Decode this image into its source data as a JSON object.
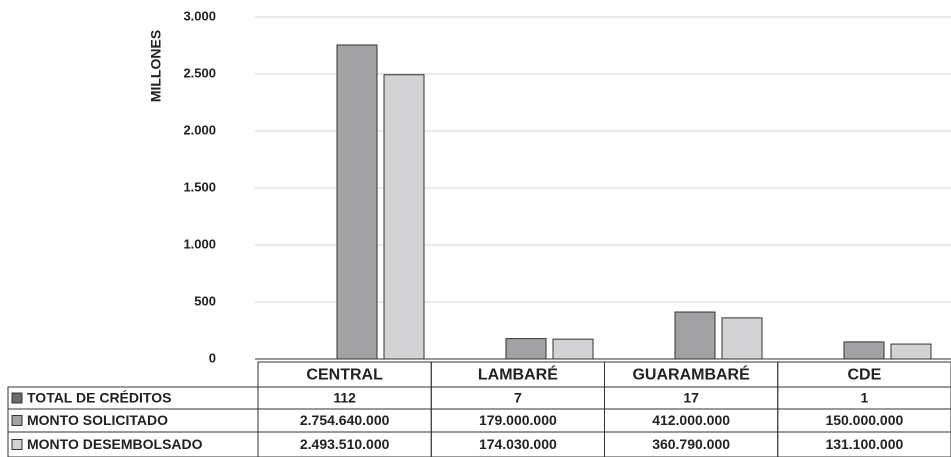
{
  "chart_data": {
    "type": "bar",
    "y_label": "MILLONES",
    "categories": [
      "CENTRAL",
      "LAMBARÉ",
      "GUARAMBARÉ",
      "CDE"
    ],
    "series": [
      {
        "name": "TOTAL DE CRÉDITOS",
        "color": "#6b6b6d",
        "bar": false,
        "values": [
          112,
          7,
          17,
          1
        ]
      },
      {
        "name": "MONTO SOLICITADO",
        "color": "#a2a2a5",
        "bar": true,
        "values": [
          2754.64,
          179,
          412,
          150
        ],
        "value_labels": [
          "2.754.640.000",
          "179.000.000",
          "412.000.000",
          "150.000.000"
        ]
      },
      {
        "name": "MONTO DESEMBOLSADO",
        "color": "#d3d3d5",
        "bar": true,
        "values": [
          2493.51,
          174.03,
          360.79,
          131.1
        ],
        "value_labels": [
          "2.493.510.000",
          "174.030.000",
          "360.790.000",
          "131.100.000"
        ]
      }
    ],
    "ylim": [
      0,
      3000
    ],
    "yticks": [
      0,
      500,
      {
        "value": 1000,
        "label": "1.000"
      },
      {
        "value": 1500,
        "label": "1.500"
      },
      {
        "value": 2000,
        "label": "2.000"
      },
      {
        "value": 2500,
        "label": "2.500"
      },
      {
        "value": 3000,
        "label": "3.000"
      }
    ],
    "grid": true
  }
}
